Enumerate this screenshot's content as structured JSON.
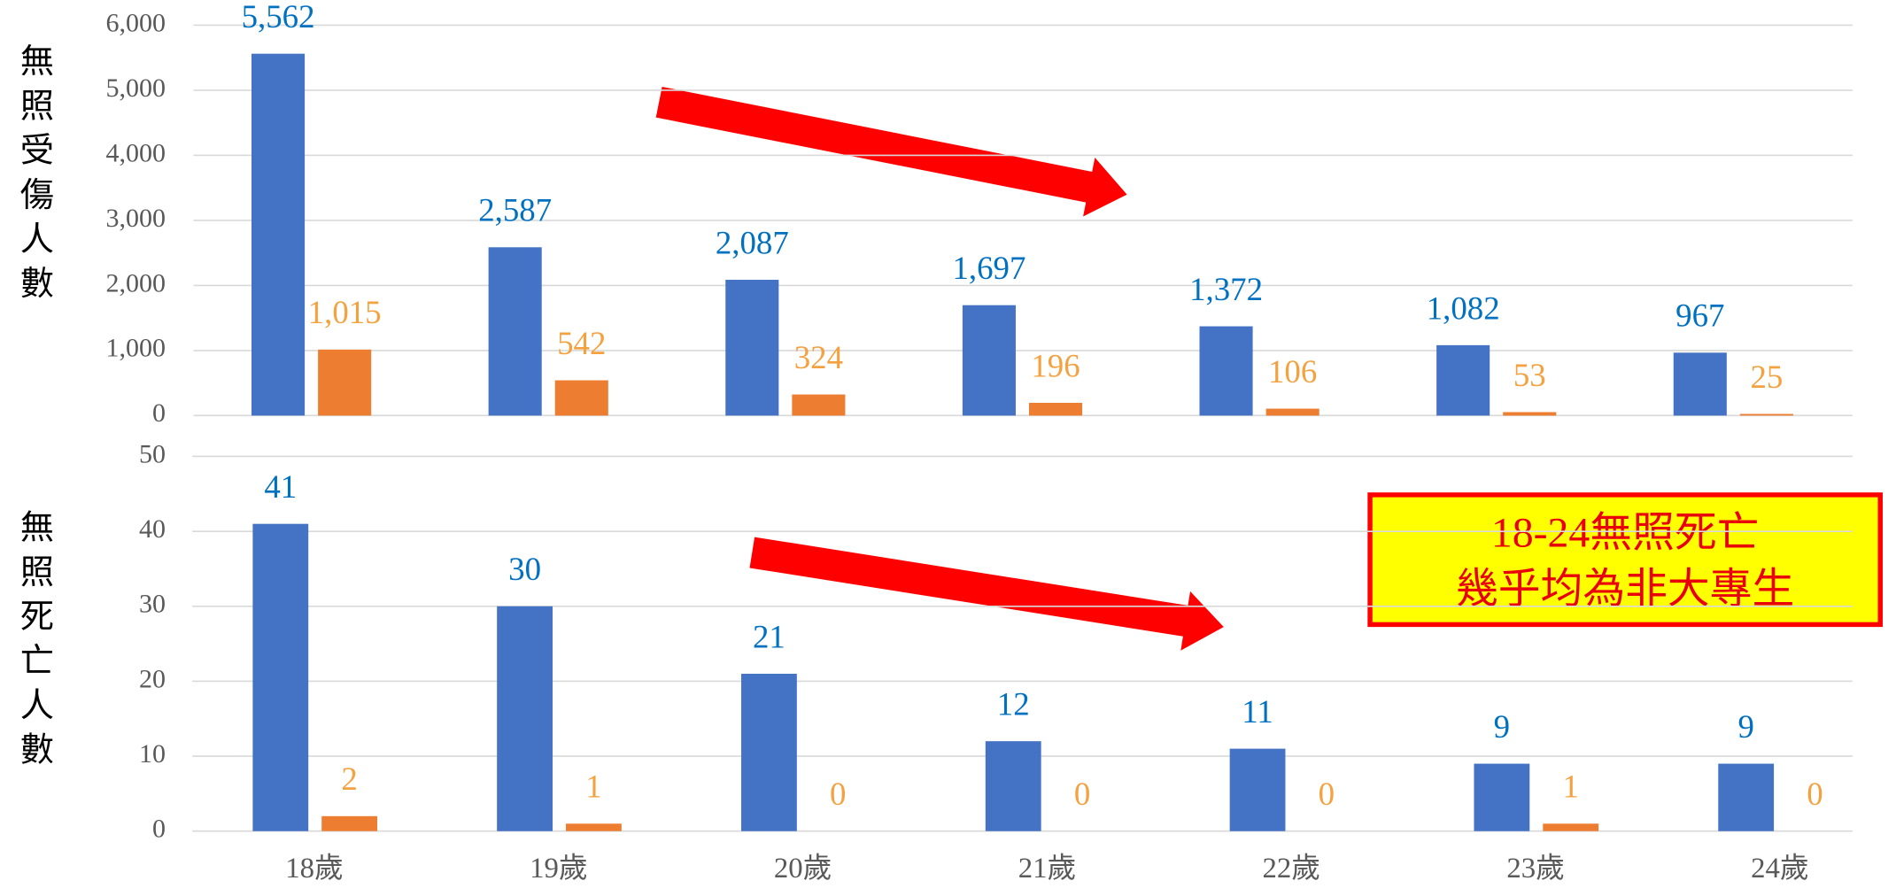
{
  "chart_data": [
    {
      "type": "bar",
      "ylabel": "無照受傷人數",
      "ylim": [
        0,
        6000
      ],
      "yticks": [
        0,
        {
          "value": 1000,
          "label": "1,000"
        },
        {
          "value": 2000,
          "label": "2,000"
        },
        {
          "value": 3000,
          "label": "3,000"
        },
        {
          "value": 4000,
          "label": "4,000"
        },
        {
          "value": 5000,
          "label": "5,000"
        },
        {
          "value": 6000,
          "label": "6,000"
        }
      ],
      "grid": true,
      "series": [
        {
          "color": "#4472c4",
          "label_color": "#0070c0",
          "values": [
            5562,
            2587,
            2087,
            1697,
            1372,
            1082,
            967
          ],
          "value_labels": [
            "5,562",
            "2,587",
            "2,087",
            "1,697",
            "1,372",
            "1,082",
            "967"
          ]
        },
        {
          "color": "#ed7d31",
          "label_color": "#f4a13f",
          "values": [
            1015,
            542,
            324,
            196,
            106,
            53,
            25
          ],
          "value_labels": [
            "1,015",
            "542",
            "324",
            "196",
            "106",
            "53",
            "25"
          ]
        }
      ]
    },
    {
      "type": "bar",
      "ylabel": "無照死亡人數",
      "categories": [
        "18歲",
        "19歲",
        "20歲",
        "21歲",
        "22歲",
        "23歲",
        "24歲"
      ],
      "ylim": [
        0,
        50
      ],
      "yticks": [
        0,
        10,
        20,
        30,
        40,
        50
      ],
      "grid": true,
      "annotation": [
        "18-24無照死亡",
        "幾乎均為非大專生"
      ],
      "series": [
        {
          "color": "#4472c4",
          "label_color": "#0070c0",
          "values": [
            41,
            30,
            21,
            12,
            11,
            9,
            9
          ]
        },
        {
          "color": "#ed7d31",
          "label_color": "#f4a13f",
          "values": [
            2,
            1,
            0,
            0,
            0,
            1,
            0
          ]
        }
      ]
    }
  ]
}
